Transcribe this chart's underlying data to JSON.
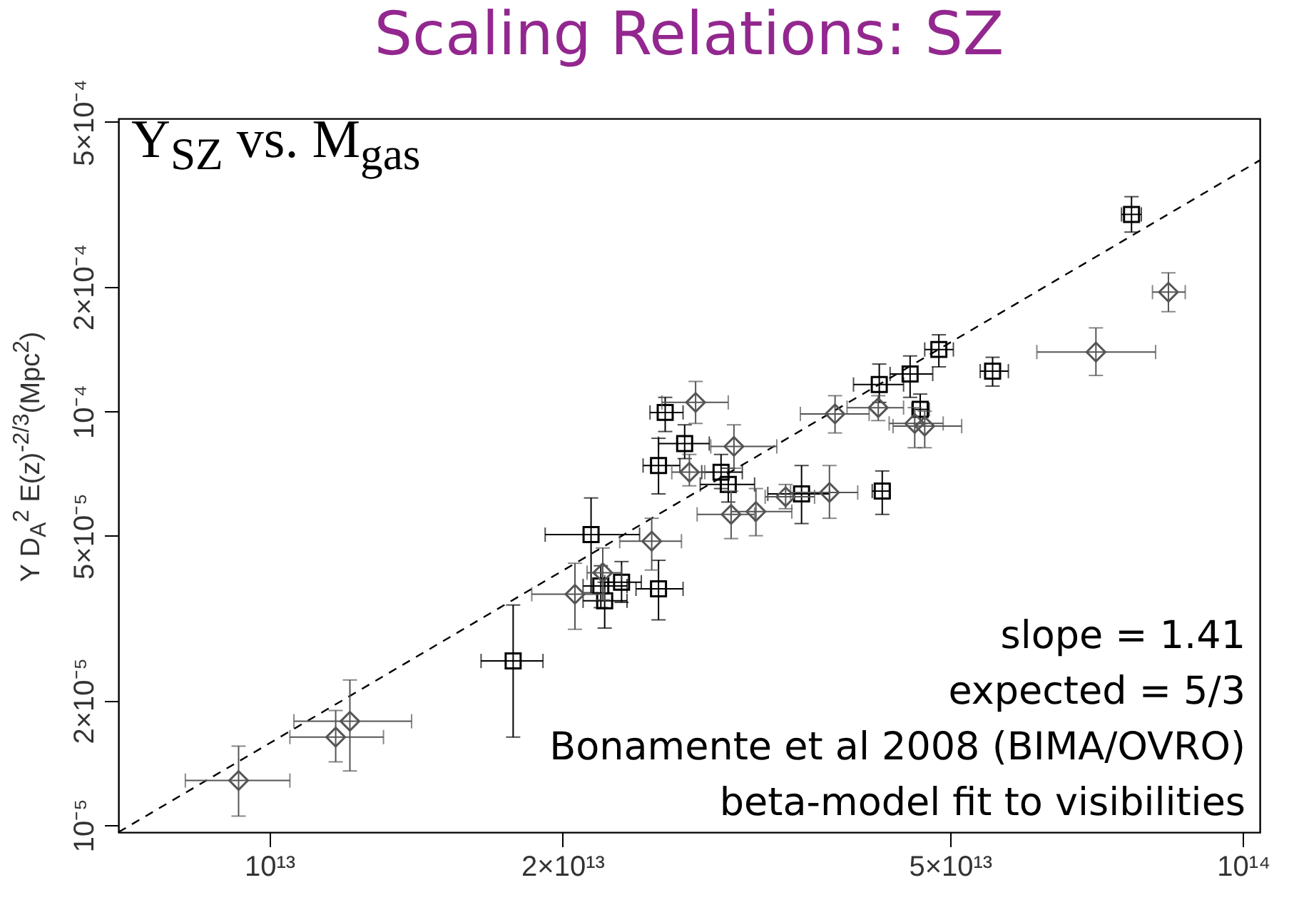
{
  "chart_data": {
    "type": "scatter",
    "title": "Scaling Relations: SZ",
    "ylabel": "Y D$_{A}$$^{2}$ E(z)$^{-2/3}$(Mpc$^{2}$)",
    "annotations": [
      "Y$_{SZ}$ vs. M$_{gas}$",
      "slope = 1.41",
      "expected = 5/3",
      "Bonamente et al 2008 (BIMA/OVRO)",
      "beta-model fit to visibilities"
    ],
    "log": "xy",
    "grid": false,
    "xlim": [
      7000000000000.0,
      104000000000000.0
    ],
    "ylim": [
      9.6e-06,
      0.00051
    ],
    "xticks": [
      {
        "value": 10000000000000.0,
        "label": "10¹³"
      },
      {
        "value": 20000000000000.0,
        "label": "2×10¹³"
      },
      {
        "value": 50000000000000.0,
        "label": "5×10¹³"
      },
      {
        "value": 100000000000000.0,
        "label": "10¹⁴"
      }
    ],
    "yticks": [
      {
        "value": 1e-05,
        "label": "10⁻⁵"
      },
      {
        "value": 2e-05,
        "label": "2×10⁻⁵"
      },
      {
        "value": 5e-05,
        "label": "5×10⁻⁵"
      },
      {
        "value": 0.0001,
        "label": "10⁻⁴"
      },
      {
        "value": 0.0002,
        "label": "2×10⁻⁴"
      },
      {
        "value": 0.0005,
        "label": "5×10⁻⁴"
      }
    ],
    "series": [
      {
        "type": "line",
        "color": "#000000",
        "line_style": "dashed",
        "x": [
          7000000000000.0,
          104000000000000.0
        ],
        "values": [
          9.6e-06,
          0.000404
        ]
      },
      {
        "color": "#000000",
        "marker": "square",
        "x": [
          17800000000000.0,
          21400000000000.0,
          21900000000000.0,
          23000000000000.0,
          22100000000000.0,
          25100000000000.0,
          25500000000000.0,
          26700000000000.0,
          25100000000000.0,
          29100000000000.0,
          29600000000000.0,
          35200000000000.0,
          42600000000000.0,
          42300000000000.0,
          45500000000000.0,
          48700000000000.0,
          46600000000000.0,
          55300000000000.0,
          76800000000000.0
        ],
        "values": [
          2.49e-05,
          5.03e-05,
          3.78e-05,
          3.86e-05,
          3.48e-05,
          3.72e-05,
          9.93e-05,
          8.35e-05,
          7.39e-05,
          7.12e-05,
          6.65e-05,
          6.31e-05,
          6.41e-05,
          0.000116,
          0.000123,
          0.000141,
          0.000101,
          0.000125,
          0.000299
        ],
        "errors": [
          [
            1.63e-05,
            3.4e-05
          ],
          [
            3.64e-05,
            6.17e-05
          ],
          [
            3.35e-05,
            4.23e-05
          ],
          [
            3.45e-05,
            4.33e-05
          ],
          [
            2.99e-05,
            3.86e-05
          ],
          [
            3.13e-05,
            4.36e-05
          ],
          [
            8.93e-05,
            0.000108
          ],
          [
            7.68e-05,
            9.27e-05
          ],
          [
            6.31e-05,
            8.6e-05
          ],
          [
            6.5e-05,
            7.86e-05
          ],
          [
            6.03e-05,
            7.28e-05
          ],
          [
            5.35e-05,
            7.39e-05
          ],
          [
            5.63e-05,
            7.17e-05
          ],
          [
            0.000105,
            0.00013
          ],
          [
            0.000108,
            0.000136
          ],
          [
            0.000128,
            0.000153
          ],
          [
            9.34e-05,
            0.00011
          ],
          [
            0.000115,
            0.000135
          ],
          [
            0.000271,
            0.00033
          ]
        ],
        "xerrors": [
          [
            16500000000000.0,
            19100000000000.0
          ],
          [
            19200000000000.0,
            24000000000000.0
          ],
          [
            21000000000000.0,
            23300000000000.0
          ],
          [
            22100000000000.0,
            24100000000000.0
          ],
          [
            21000000000000.0,
            23300000000000.0
          ],
          [
            23800000000000.0,
            26600000000000.0
          ],
          [
            24600000000000.0,
            26600000000000.0
          ],
          [
            25100000000000.0,
            28300000000000.0
          ],
          [
            24200000000000.0,
            26400000000000.0
          ],
          [
            27800000000000.0,
            30600000000000.0
          ],
          [
            27700000000000.0,
            31500000000000.0
          ],
          [
            32500000000000.0,
            37600000000000.0
          ],
          [
            41600000000000.0,
            43400000000000.0
          ],
          [
            39800000000000.0,
            44800000000000.0
          ],
          [
            43400000000000.0,
            48000000000000.0
          ],
          [
            47100000000000.0,
            50400000000000.0
          ],
          [
            45700000000000.0,
            47600000000000.0
          ],
          [
            53700000000000.0,
            57400000000000.0
          ],
          [
            75000000000000.0,
            78600000000000.0
          ]
        ]
      },
      {
        "color": "#555555",
        "marker": "diamond",
        "x": [
          9300000000000.0,
          11700000000000.0,
          12100000000000.0,
          24700000000000.0,
          20600000000000.0,
          22000000000000.0,
          27400000000000.0,
          30000000000000.0,
          27000000000000.0,
          29800000000000.0,
          31600000000000.0,
          33900000000000.0,
          37600000000000.0,
          38100000000000.0,
          42200000000000.0,
          46000000000000.0,
          47100000000000.0,
          70600000000000.0,
          83800000000000.0
        ],
        "values": [
          1.28e-05,
          1.63e-05,
          1.78e-05,
          4.85e-05,
          3.61e-05,
          4.07e-05,
          0.000105,
          8.22e-05,
          7.12e-05,
          5.63e-05,
          5.72e-05,
          6.21e-05,
          6.36e-05,
          9.85e-05,
          0.000102,
          9.34e-05,
          9.2e-05,
          0.000139,
          0.000194
        ],
        "errors": [
          [
            1.05e-05,
            1.55e-05
          ],
          [
            1.42e-05,
            1.89e-05
          ],
          [
            1.35e-05,
            2.24e-05
          ],
          [
            4.13e-05,
            5.51e-05
          ],
          [
            2.97e-05,
            4.29e-05
          ],
          [
            3.5e-05,
            4.67e-05
          ],
          [
            9.34e-05,
            0.000118
          ],
          [
            7.28e-05,
            9.27e-05
          ],
          [
            6.6e-05,
            7.86e-05
          ],
          [
            4.92e-05,
            6.41e-05
          ],
          [
            5e-05,
            6.5e-05
          ],
          [
            5.81e-05,
            6.65e-05
          ],
          [
            5.51e-05,
            7.39e-05
          ],
          [
            8.86e-05,
            0.000109
          ],
          [
            9.49e-05,
            0.000109
          ],
          [
            8.16e-05,
            0.000102
          ],
          [
            8.16e-05,
            0.0001
          ],
          [
            0.000122,
            0.000159
          ],
          [
            0.000174,
            0.000216
          ]
        ],
        "xerrors": [
          [
            8200000000000.0,
            10500000000000.0
          ],
          [
            10500000000000.0,
            13100000000000.0
          ],
          [
            10600000000000.0,
            14000000000000.0
          ],
          [
            22900000000000.0,
            26500000000000.0
          ],
          [
            18600000000000.0,
            22100000000000.0
          ],
          [
            21200000000000.0,
            23000000000000.0
          ],
          [
            25300000000000.0,
            29600000000000.0
          ],
          [
            28400000000000.0,
            33200000000000.0
          ],
          [
            25900000000000.0,
            28000000000000.0
          ],
          [
            27500000000000.0,
            31500000000000.0
          ],
          [
            29800000000000.0,
            34400000000000.0
          ],
          [
            32300000000000.0,
            36300000000000.0
          ],
          [
            34300000000000.0,
            40200000000000.0
          ],
          [
            35100000000000.0,
            41300000000000.0
          ],
          [
            39200000000000.0,
            44800000000000.0
          ],
          [
            43300000000000.0,
            49200000000000.0
          ],
          [
            43700000000000.0,
            51400000000000.0
          ],
          [
            61400000000000.0,
            81300000000000.0
          ],
          [
            80700000000000.0,
            87200000000000.0
          ]
        ]
      }
    ]
  }
}
